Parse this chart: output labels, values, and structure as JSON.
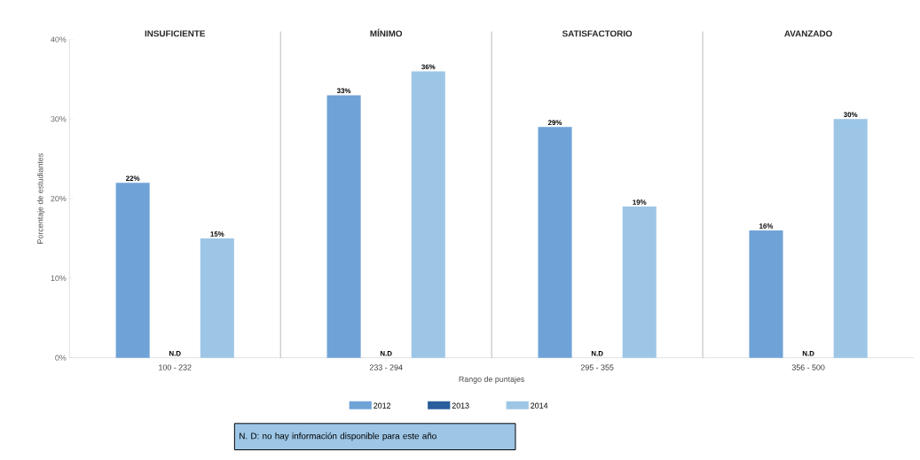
{
  "chart_data": {
    "type": "bar",
    "xlabel": "Rango de puntajes",
    "ylabel": "Porcentaje de estudiantes",
    "categories": [
      "100 - 232",
      "233 - 294",
      "295 - 355",
      "356 - 500"
    ],
    "series": [
      {
        "name": "2012",
        "color": "#6fa3d8",
        "values": [
          22,
          33,
          29,
          16
        ],
        "value_labels": [
          "22%",
          "33%",
          "29%",
          "16%"
        ]
      },
      {
        "name": "2013",
        "color": "#2a5d9c",
        "values": [
          null,
          null,
          null,
          null
        ],
        "value_labels": [
          "N.D",
          "N.D",
          "N.D",
          "N.D"
        ]
      },
      {
        "name": "2014",
        "color": "#9dc6e6",
        "values": [
          15,
          36,
          19,
          30
        ],
        "value_labels": [
          "15%",
          "36%",
          "19%",
          "30%"
        ]
      }
    ],
    "ylim": [
      0,
      40
    ],
    "yticks": [
      {
        "value": 0,
        "label": "0%"
      },
      {
        "value": 10,
        "label": "10%"
      },
      {
        "value": 20,
        "label": "20%"
      },
      {
        "value": 30,
        "label": "30%"
      },
      {
        "value": 40,
        "label": "40%"
      }
    ],
    "legend": "bottom",
    "grid": false,
    "annotations": [
      "INSUFICIENTE",
      "MÍNIMO",
      "SATISFACTORIO",
      "AVANZADO",
      "N. D: no hay información disponible para este año"
    ]
  }
}
